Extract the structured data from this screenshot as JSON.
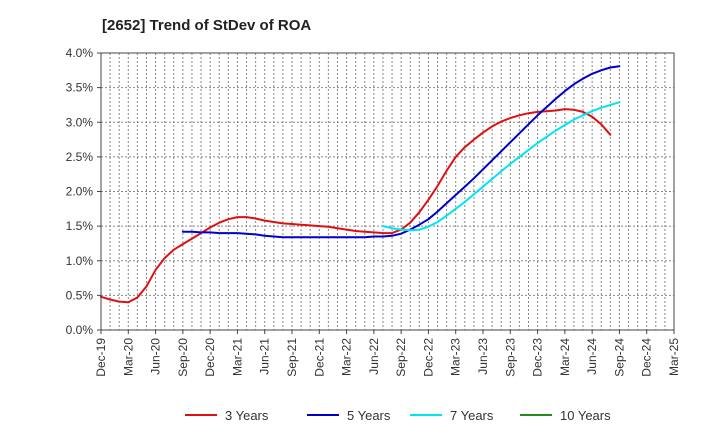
{
  "chart_data": {
    "type": "line",
    "title": "[2652]  Trend of StDev of ROA",
    "x_ticks": [
      "Dec-19",
      "Mar-20",
      "Jun-20",
      "Sep-20",
      "Dec-20",
      "Mar-21",
      "Jun-21",
      "Sep-21",
      "Dec-21",
      "Mar-22",
      "Jun-22",
      "Sep-22",
      "Dec-22",
      "Mar-23",
      "Jun-23",
      "Sep-23",
      "Dec-23",
      "Mar-24",
      "Jun-24",
      "Sep-24",
      "Dec-24",
      "Mar-25"
    ],
    "y_ticks": [
      "0.0%",
      "0.5%",
      "1.0%",
      "1.5%",
      "2.0%",
      "2.5%",
      "3.0%",
      "3.5%",
      "4.0%"
    ],
    "ylim": [
      0,
      4.0
    ],
    "y_unit": "%",
    "grid": true,
    "legend_position": "bottom",
    "series": [
      {
        "name": "3 Years",
        "color": "#dd1111",
        "start_index": 0,
        "values": [
          0.48,
          0.44,
          0.41,
          0.4,
          0.47,
          0.63,
          0.87,
          1.04,
          1.16,
          1.24,
          1.32,
          1.4,
          1.48,
          1.55,
          1.6,
          1.63,
          1.63,
          1.61,
          1.58,
          1.56,
          1.54,
          1.53,
          1.52,
          1.51,
          1.5,
          1.49,
          1.47,
          1.45,
          1.43,
          1.42,
          1.41,
          1.4,
          1.4,
          1.45,
          1.55,
          1.7,
          1.88,
          2.08,
          2.3,
          2.5,
          2.64,
          2.75,
          2.85,
          2.94,
          3.01,
          3.06,
          3.1,
          3.13,
          3.15,
          3.16,
          3.17,
          3.19,
          3.18,
          3.15,
          3.08,
          2.97,
          2.82
        ]
      },
      {
        "name": "5 Years",
        "color": "#0000cc",
        "start_index": 9,
        "values": [
          1.42,
          1.42,
          1.41,
          1.41,
          1.4,
          1.4,
          1.4,
          1.39,
          1.38,
          1.36,
          1.35,
          1.34,
          1.34,
          1.34,
          1.34,
          1.34,
          1.34,
          1.34,
          1.34,
          1.34,
          1.34,
          1.35,
          1.35,
          1.36,
          1.39,
          1.45,
          1.52,
          1.6,
          1.71,
          1.83,
          1.95,
          2.07,
          2.19,
          2.32,
          2.45,
          2.58,
          2.71,
          2.84,
          2.97,
          3.1,
          3.22,
          3.34,
          3.45,
          3.55,
          3.63,
          3.7,
          3.75,
          3.79,
          3.81
        ]
      },
      {
        "name": "7 Years",
        "color": "#00e5ee",
        "start_index": 31,
        "values": [
          1.5,
          1.47,
          1.45,
          1.44,
          1.45,
          1.49,
          1.56,
          1.65,
          1.75,
          1.85,
          1.96,
          2.07,
          2.18,
          2.29,
          2.4,
          2.5,
          2.6,
          2.7,
          2.79,
          2.88,
          2.96,
          3.04,
          3.1,
          3.16,
          3.21,
          3.25,
          3.29
        ]
      },
      {
        "name": "10 Years",
        "color": "#228b22",
        "start_index": 0,
        "values": []
      }
    ]
  }
}
